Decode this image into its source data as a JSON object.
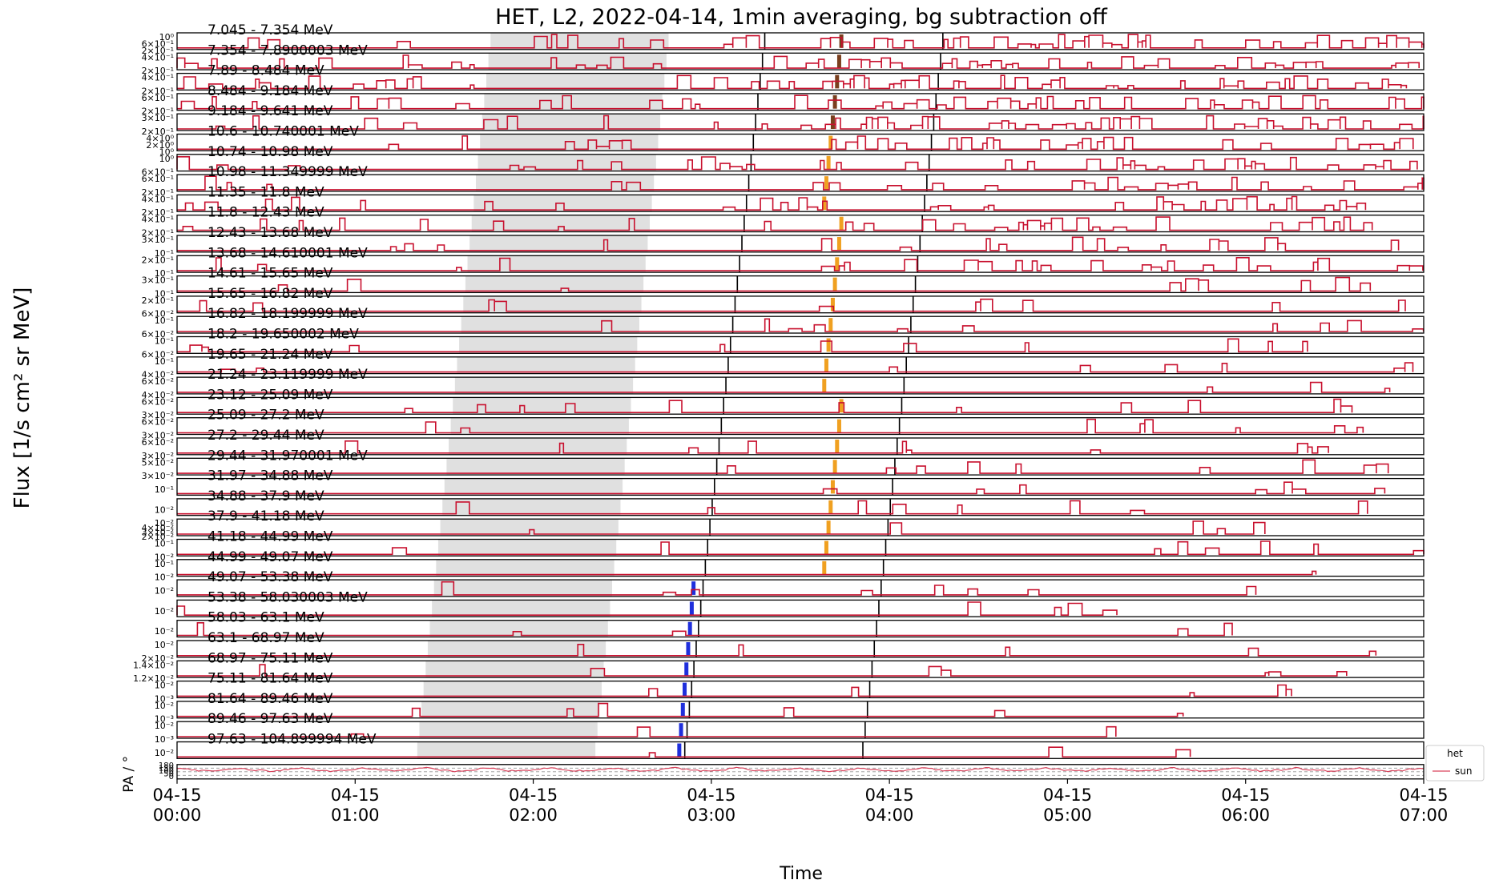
{
  "chart_data": {
    "type": "line",
    "title": "HET, L2, 2022-04-14, 1min averaging, bg subtraction off",
    "xlabel": "Time",
    "ylabel": "Flux [1/s cm² sr MeV]",
    "xlim": [
      "04-15 00:00",
      "04-15 07:00"
    ],
    "x_ticks": [
      {
        "date": "04-15",
        "time": "00:00"
      },
      {
        "date": "04-15",
        "time": "01:00"
      },
      {
        "date": "04-15",
        "time": "02:00"
      },
      {
        "date": "04-15",
        "time": "03:00"
      },
      {
        "date": "04-15",
        "time": "04:00"
      },
      {
        "date": "04-15",
        "time": "05:00"
      },
      {
        "date": "04-15",
        "time": "06:00"
      },
      {
        "date": "04-15",
        "time": "07:00"
      }
    ],
    "yscale": "log",
    "panels": [
      {
        "label": "7.045 - 7.354 MeV",
        "ytick_labels": [
          "10⁰",
          "6×10⁻¹",
          "2×10⁻¹"
        ]
      },
      {
        "label": "7.354 - 7.8900003 MeV",
        "ytick_labels": [
          "4×10⁻¹",
          "2×10⁻¹"
        ]
      },
      {
        "label": "7.89 - 8.484 MeV",
        "ytick_labels": [
          "4×10⁻¹",
          "2×10⁻¹"
        ]
      },
      {
        "label": "8.484 - 9.184 MeV",
        "ytick_labels": [
          "6×10⁻¹",
          "2×10⁻¹"
        ]
      },
      {
        "label": "9.184 - 9.641 MeV",
        "ytick_labels": [
          "3×10⁻¹",
          "2×10⁻¹"
        ]
      },
      {
        "label": "10.6 - 10.740001 MeV",
        "ytick_labels": [
          "4×10⁰",
          "2×10⁰",
          "10⁰"
        ]
      },
      {
        "label": "10.74 - 10.98 MeV",
        "ytick_labels": [
          "10⁰",
          "6×10⁻¹"
        ]
      },
      {
        "label": "10.98 - 11.349999 MeV",
        "ytick_labels": [
          "6×10⁻¹",
          "2×10⁻¹"
        ]
      },
      {
        "label": "11.35 - 11.8 MeV",
        "ytick_labels": [
          "4×10⁻¹",
          "2×10⁻¹"
        ]
      },
      {
        "label": "11.8 - 12.43 MeV",
        "ytick_labels": [
          "4×10⁻¹",
          "2×10⁻¹"
        ]
      },
      {
        "label": "12.43 - 13.68 MeV",
        "ytick_labels": [
          "3×10⁻¹",
          "10⁻¹"
        ]
      },
      {
        "label": "13.68 - 14.610001 MeV",
        "ytick_labels": [
          "2×10⁻¹",
          "10⁻¹"
        ]
      },
      {
        "label": "14.61 - 15.65 MeV",
        "ytick_labels": [
          "3×10⁻¹",
          "10⁻¹"
        ]
      },
      {
        "label": "15.65 - 16.82 MeV",
        "ytick_labels": [
          "2×10⁻¹",
          "6×10⁻²"
        ]
      },
      {
        "label": "16.82 - 18.199999 MeV",
        "ytick_labels": [
          "10⁻¹",
          "6×10⁻²"
        ]
      },
      {
        "label": "18.2 - 19.650002 MeV",
        "ytick_labels": [
          "10⁻¹",
          "6×10⁻²"
        ]
      },
      {
        "label": "19.65 - 21.24 MeV",
        "ytick_labels": [
          "10⁻¹",
          "4×10⁻²"
        ]
      },
      {
        "label": "21.24 - 23.119999 MeV",
        "ytick_labels": [
          "6×10⁻²",
          "4×10⁻²"
        ]
      },
      {
        "label": "23.12 - 25.09 MeV",
        "ytick_labels": [
          "6×10⁻²",
          "3×10⁻²"
        ]
      },
      {
        "label": "25.09 - 27.2 MeV",
        "ytick_labels": [
          "6×10⁻²",
          "3×10⁻²"
        ]
      },
      {
        "label": "27.2 - 29.44 MeV",
        "ytick_labels": [
          "6×10⁻²",
          "3×10⁻²"
        ]
      },
      {
        "label": "29.44 - 31.970001 MeV",
        "ytick_labels": [
          "5×10⁻²",
          "3×10⁻²"
        ]
      },
      {
        "label": "31.97 - 34.88 MeV",
        "ytick_labels": [
          "10⁻¹"
        ]
      },
      {
        "label": "34.88 - 37.9 MeV",
        "ytick_labels": [
          "10⁻²"
        ]
      },
      {
        "label": "37.9 - 41.18 MeV",
        "ytick_labels": [
          "10⁻²",
          "4×10⁻²",
          "3×10⁻²",
          "2×10⁻²"
        ]
      },
      {
        "label": "41.18 - 44.99 MeV",
        "ytick_labels": [
          "10⁻¹",
          "10⁻²"
        ]
      },
      {
        "label": "44.99 - 49.07 MeV",
        "ytick_labels": [
          "10⁻¹",
          "10⁻²"
        ]
      },
      {
        "label": "49.07 - 53.38 MeV",
        "ytick_labels": [
          "10⁻²"
        ]
      },
      {
        "label": "53.38 - 58.030003 MeV",
        "ytick_labels": [
          "10⁻²"
        ]
      },
      {
        "label": "58.03 - 63.1 MeV",
        "ytick_labels": [
          "10⁻²"
        ]
      },
      {
        "label": "63.1 - 68.97 MeV",
        "ytick_labels": [
          "10⁻²",
          "2×10⁻²"
        ]
      },
      {
        "label": "68.97 - 75.11 MeV",
        "ytick_labels": [
          "1.4×10⁻²",
          "1.2×10⁻²"
        ]
      },
      {
        "label": "75.11 - 81.64 MeV",
        "ytick_labels": [
          "10⁻²",
          "10⁻³"
        ]
      },
      {
        "label": "81.64 - 89.46 MeV",
        "ytick_labels": [
          "10⁻²",
          "10⁻³"
        ]
      },
      {
        "label": "89.46 - 97.63 MeV",
        "ytick_labels": [
          "10⁻²",
          "10⁻³"
        ]
      },
      {
        "label": "97.63 - 104.899994 MeV",
        "ytick_labels": [
          "10⁻²"
        ]
      }
    ],
    "pa_panel": {
      "ylabel": "PA / °",
      "ytick_labels": [
        "180",
        "150",
        "100",
        "50",
        "0"
      ],
      "legend": {
        "title": "het",
        "entries": [
          {
            "name": "sun",
            "color": "#d9435c"
          }
        ],
        "placement": "right"
      }
    },
    "series_color": "#c8102e",
    "marker_colors": {
      "black": "#000000",
      "brown": "#7a3f1e",
      "orange": "#f0a020",
      "blue": "#1f2fdc",
      "grid": "#e0e0e0"
    }
  }
}
